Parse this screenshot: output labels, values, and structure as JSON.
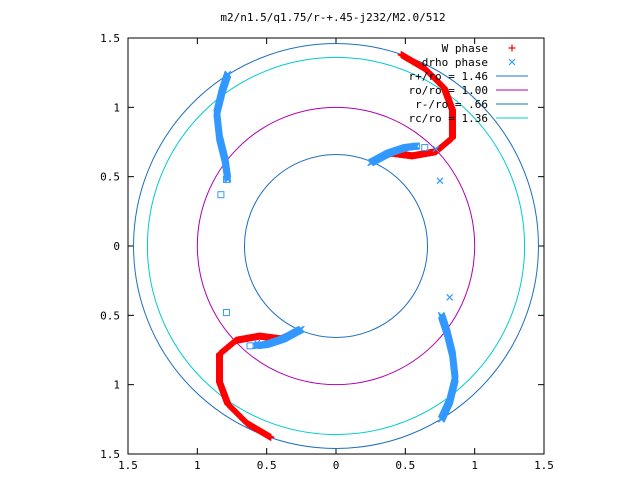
{
  "chart_data": {
    "type": "scatter",
    "title": "m2/n1.5/q1.75/r-+.45-j232/M2.0/512",
    "xlabel": "",
    "ylabel": "",
    "xlim": [
      -1.5,
      1.5
    ],
    "ylim": [
      -1.5,
      1.5
    ],
    "x_ticks": [
      "1.5",
      "1",
      "0.5",
      "0",
      "0.5",
      "1",
      "1.5"
    ],
    "y_ticks": [
      "1.5",
      "1",
      "0.5",
      "0",
      "0.5",
      "1",
      "1.5"
    ],
    "grid": false,
    "legend_position": "top-right",
    "colors": {
      "w_phase": "#ff0000",
      "drho_phase": "#3399ff",
      "r_plus": "#1f6fbf",
      "r_o": "#b000b0",
      "r_minus": "#1f6fbf",
      "r_c": "#00cccc"
    },
    "series": [
      {
        "name": "W phase",
        "marker": "+",
        "arms": [
          [
            [
              0.28,
              0.62
            ],
            [
              0.4,
              0.67
            ],
            [
              0.55,
              0.65
            ],
            [
              0.72,
              0.68
            ],
            [
              0.84,
              0.78
            ],
            [
              0.84,
              0.98
            ],
            [
              0.78,
              1.14
            ],
            [
              0.64,
              1.28
            ],
            [
              0.47,
              1.38
            ]
          ],
          [
            [
              -0.28,
              -0.62
            ],
            [
              -0.4,
              -0.67
            ],
            [
              -0.55,
              -0.65
            ],
            [
              -0.72,
              -0.68
            ],
            [
              -0.84,
              -0.78
            ],
            [
              -0.84,
              -0.98
            ],
            [
              -0.78,
              -1.14
            ],
            [
              -0.64,
              -1.28
            ],
            [
              -0.47,
              -1.38
            ]
          ]
        ]
      },
      {
        "name": "drho phase",
        "marker": "x",
        "arms": [
          [
            [
              0.25,
              0.6
            ],
            [
              0.38,
              0.67
            ],
            [
              0.5,
              0.71
            ],
            [
              0.58,
              0.72
            ]
          ],
          [
            [
              -0.78,
              0.48
            ],
            [
              -0.8,
              0.62
            ],
            [
              -0.84,
              0.78
            ],
            [
              -0.86,
              0.96
            ],
            [
              -0.82,
              1.12
            ],
            [
              -0.78,
              1.24
            ]
          ],
          [
            [
              -0.25,
              -0.6
            ],
            [
              -0.38,
              -0.67
            ],
            [
              -0.5,
              -0.71
            ],
            [
              -0.58,
              -0.72
            ]
          ],
          [
            [
              0.76,
              -0.5
            ],
            [
              0.8,
              -0.62
            ],
            [
              0.84,
              -0.78
            ],
            [
              0.86,
              -0.96
            ],
            [
              0.82,
              -1.12
            ],
            [
              0.76,
              -1.25
            ]
          ]
        ],
        "scattered": [
          [
            0.75,
            0.47
          ],
          [
            0.82,
            -0.37
          ],
          [
            0.72,
            0.7
          ],
          [
            -0.57,
            -0.7
          ]
        ]
      }
    ],
    "extra_points_square": [
      [
        -0.83,
        0.37
      ],
      [
        -0.79,
        0.48
      ],
      [
        0.64,
        0.71
      ],
      [
        0.58,
        0.72
      ],
      [
        -0.79,
        -0.48
      ],
      [
        -0.62,
        -0.72
      ]
    ],
    "circles": [
      {
        "name": "r+/ro = 1.46",
        "r": 1.46
      },
      {
        "name": "ro/ro = 1.00",
        "r": 1.0
      },
      {
        "name": "r-/ro = .66",
        "r": 0.66
      },
      {
        "name": "rc/ro = 1.36",
        "r": 1.36
      }
    ]
  }
}
